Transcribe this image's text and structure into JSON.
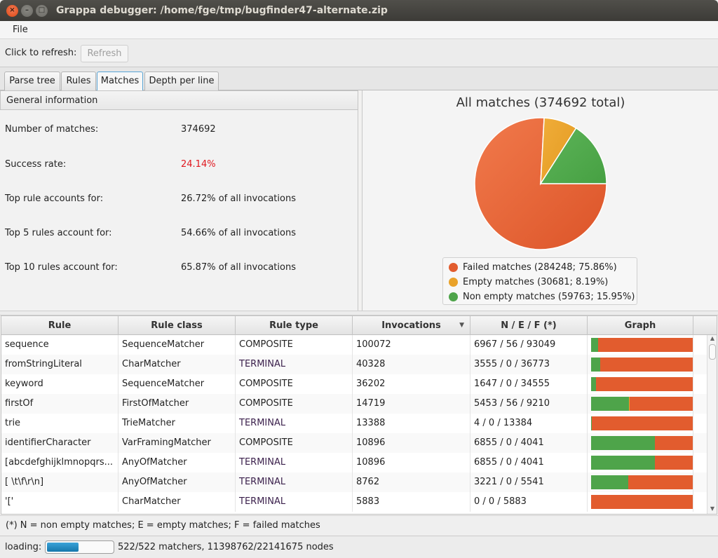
{
  "window": {
    "title": "Grappa debugger: /home/fge/tmp/bugfinder47-alternate.zip",
    "close_glyph": "×",
    "min_glyph": "–",
    "max_glyph": "□"
  },
  "menu": {
    "file_label": "File"
  },
  "toolbar": {
    "refresh_prompt": "Click to refresh:",
    "refresh_label": "Refresh"
  },
  "tabs": [
    {
      "label": "Parse tree",
      "active": false
    },
    {
      "label": "Rules",
      "active": false
    },
    {
      "label": "Matches",
      "active": true
    },
    {
      "label": "Depth per line",
      "active": false
    }
  ],
  "general": {
    "header": "General information",
    "rows": [
      {
        "key": "Number of matches:",
        "value": "374692"
      },
      {
        "key": "Success rate:",
        "value": "24.14%"
      },
      {
        "key": "Top rule accounts for:",
        "value": "26.72% of all invocations"
      },
      {
        "key": "Top 5 rules account for:",
        "value": "54.66% of all invocations"
      },
      {
        "key": "Top 10 rules account for:",
        "value": "65.87% of all invocations"
      }
    ]
  },
  "chart_data": {
    "type": "pie",
    "title": "All matches (374692 total)",
    "slices": [
      {
        "name": "Failed matches",
        "value": 284248,
        "percent": 75.86,
        "color": "#e25c2e"
      },
      {
        "name": "Empty matches",
        "value": 30681,
        "percent": 8.19,
        "color": "#e9a22a"
      },
      {
        "name": "Non empty matches",
        "value": 59763,
        "percent": 15.95,
        "color": "#4ea44a"
      }
    ],
    "legend": [
      "Failed matches (284248; 75.86%)",
      "Empty matches (30681; 8.19%)",
      "Non empty matches (59763; 15.95%)"
    ],
    "legend_placement": "bottom"
  },
  "table": {
    "columns": [
      "Rule",
      "Rule class",
      "Rule type",
      "Invocations",
      "N / E / F (*)",
      "Graph"
    ],
    "sort_icon": "▼",
    "rows": [
      {
        "rule": "sequence",
        "cls": "SequenceMatcher",
        "type": "COMPOSITE",
        "inv": "100072",
        "nef": "6967 / 56 / 93049",
        "n": 6967,
        "e": 56,
        "f": 93049
      },
      {
        "rule": "fromStringLiteral",
        "cls": "CharMatcher",
        "type": "TERMINAL",
        "inv": "40328",
        "nef": "3555 / 0 / 36773",
        "n": 3555,
        "e": 0,
        "f": 36773
      },
      {
        "rule": "keyword",
        "cls": "SequenceMatcher",
        "type": "COMPOSITE",
        "inv": "36202",
        "nef": "1647 / 0 / 34555",
        "n": 1647,
        "e": 0,
        "f": 34555
      },
      {
        "rule": "firstOf",
        "cls": "FirstOfMatcher",
        "type": "COMPOSITE",
        "inv": "14719",
        "nef": "5453 / 56 / 9210",
        "n": 5453,
        "e": 56,
        "f": 9210
      },
      {
        "rule": "trie",
        "cls": "TrieMatcher",
        "type": "TERMINAL",
        "inv": "13388",
        "nef": "4 / 0 / 13384",
        "n": 4,
        "e": 0,
        "f": 13384
      },
      {
        "rule": "identifierCharacter",
        "cls": "VarFramingMatcher",
        "type": "COMPOSITE",
        "inv": "10896",
        "nef": "6855 / 0 / 4041",
        "n": 6855,
        "e": 0,
        "f": 4041
      },
      {
        "rule": "[abcdefghijklmnopqrs...",
        "cls": "AnyOfMatcher",
        "type": "TERMINAL",
        "inv": "10896",
        "nef": "6855 / 0 / 4041",
        "n": 6855,
        "e": 0,
        "f": 4041
      },
      {
        "rule": "[ \\t\\f\\r\\n]",
        "cls": "AnyOfMatcher",
        "type": "TERMINAL",
        "inv": "8762",
        "nef": "3221 / 0 / 5541",
        "n": 3221,
        "e": 0,
        "f": 5541
      },
      {
        "rule": "'['",
        "cls": "CharMatcher",
        "type": "TERMINAL",
        "inv": "5883",
        "nef": "0 / 0 / 5883",
        "n": 0,
        "e": 0,
        "f": 5883
      }
    ],
    "footnote": "(*) N = non empty matches; E = empty matches; F = failed matches"
  },
  "status": {
    "loading_label": "loading:",
    "progress_fraction": 0.48,
    "info": "522/522 matchers, 11398762/22141675 nodes"
  }
}
